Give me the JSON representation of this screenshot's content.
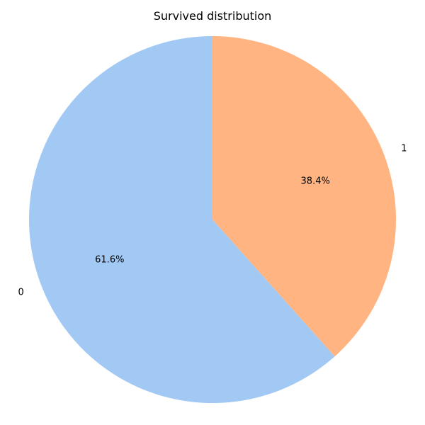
{
  "chart_data": {
    "type": "pie",
    "title": "Survived distribution",
    "categories": [
      "0",
      "1"
    ],
    "values": [
      61.6,
      38.4
    ],
    "percent_labels": [
      "61.6%",
      "38.4%"
    ],
    "colors": [
      "#a1c9f4",
      "#ffb482"
    ],
    "start_angle": "top, clockwise order shown: 1 on right, 0 on left",
    "legend": "none"
  }
}
